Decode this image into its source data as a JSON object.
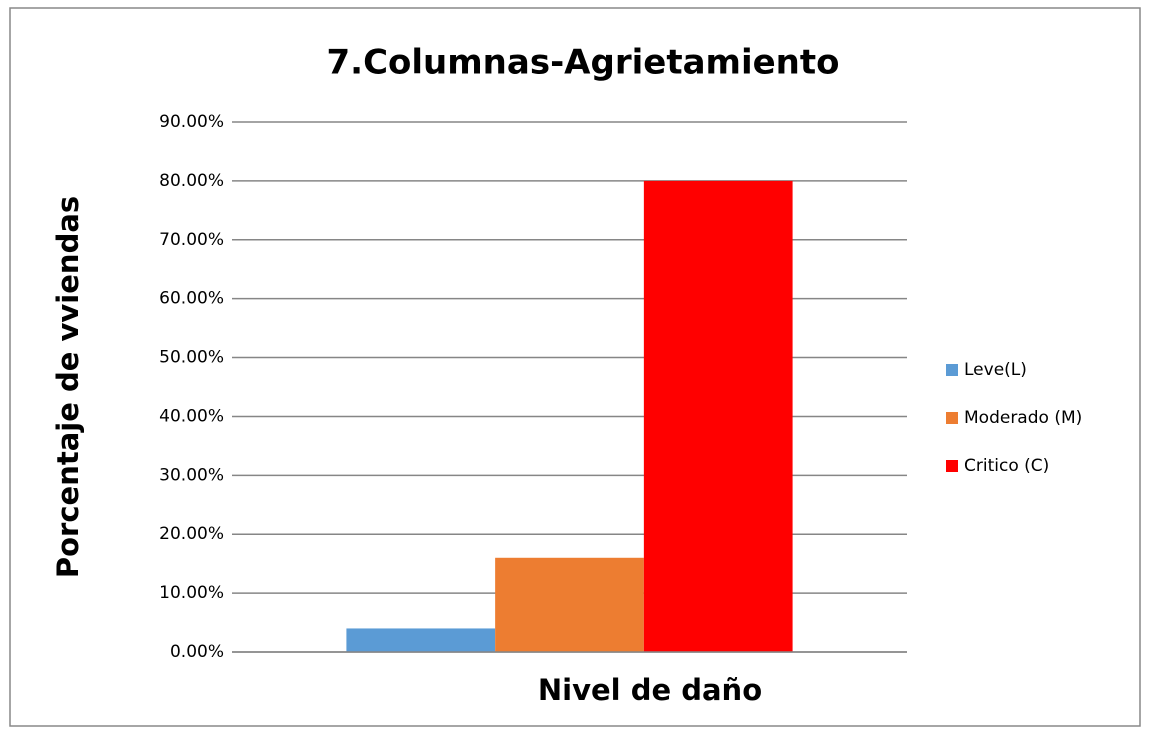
{
  "chart_data": {
    "type": "bar",
    "title": "7.Columnas-Agrietamiento",
    "x_label": "Nivel de daño",
    "y_label": "Porcentaje de vviendas",
    "categories": [
      null
    ],
    "series": [
      {
        "name": "Leve(L)",
        "color": "#5b9bd5",
        "values": [
          4
        ]
      },
      {
        "name": "Moderado (M)",
        "color": "#ed7d31",
        "values": [
          16
        ]
      },
      {
        "name": "Critico (C)",
        "color": "#ff0000",
        "values": [
          80
        ]
      }
    ],
    "ylim": [
      0,
      90
    ],
    "yticks": [
      {
        "value": 0,
        "label": "0.00%"
      },
      {
        "value": 10,
        "label": "10.00%"
      },
      {
        "value": 20,
        "label": "20.00%"
      },
      {
        "value": 30,
        "label": "30.00%"
      },
      {
        "value": 40,
        "label": "40.00%"
      },
      {
        "value": 50,
        "label": "50.00%"
      },
      {
        "value": 60,
        "label": "60.00%"
      },
      {
        "value": 70,
        "label": "70.00%"
      },
      {
        "value": 80,
        "label": "80.00%"
      },
      {
        "value": 90,
        "label": "90.00%"
      }
    ],
    "grid": true,
    "legend": "right"
  }
}
